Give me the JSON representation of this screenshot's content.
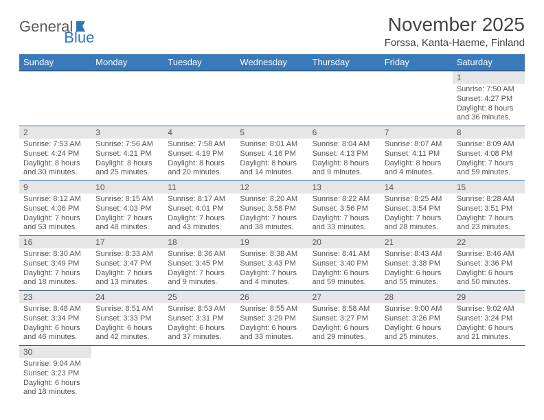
{
  "logo": {
    "part1": "General",
    "part2": "Blue"
  },
  "title": "November 2025",
  "location": "Forssa, Kanta-Haeme, Finland",
  "colors": {
    "header_bg": "#3a7ab8",
    "header_border": "#2e5e92",
    "day_num_bg": "#e6e6e6",
    "text": "#555555",
    "logo_gray": "#5a5a5a",
    "logo_blue": "#2e75b6"
  },
  "weekdays": [
    "Sunday",
    "Monday",
    "Tuesday",
    "Wednesday",
    "Thursday",
    "Friday",
    "Saturday"
  ],
  "weeks": [
    [
      null,
      null,
      null,
      null,
      null,
      null,
      {
        "n": "1",
        "sunrise": "Sunrise: 7:50 AM",
        "sunset": "Sunset: 4:27 PM",
        "daylight": "Daylight: 8 hours and 36 minutes."
      }
    ],
    [
      {
        "n": "2",
        "sunrise": "Sunrise: 7:53 AM",
        "sunset": "Sunset: 4:24 PM",
        "daylight": "Daylight: 8 hours and 30 minutes."
      },
      {
        "n": "3",
        "sunrise": "Sunrise: 7:56 AM",
        "sunset": "Sunset: 4:21 PM",
        "daylight": "Daylight: 8 hours and 25 minutes."
      },
      {
        "n": "4",
        "sunrise": "Sunrise: 7:58 AM",
        "sunset": "Sunset: 4:19 PM",
        "daylight": "Daylight: 8 hours and 20 minutes."
      },
      {
        "n": "5",
        "sunrise": "Sunrise: 8:01 AM",
        "sunset": "Sunset: 4:16 PM",
        "daylight": "Daylight: 8 hours and 14 minutes."
      },
      {
        "n": "6",
        "sunrise": "Sunrise: 8:04 AM",
        "sunset": "Sunset: 4:13 PM",
        "daylight": "Daylight: 8 hours and 9 minutes."
      },
      {
        "n": "7",
        "sunrise": "Sunrise: 8:07 AM",
        "sunset": "Sunset: 4:11 PM",
        "daylight": "Daylight: 8 hours and 4 minutes."
      },
      {
        "n": "8",
        "sunrise": "Sunrise: 8:09 AM",
        "sunset": "Sunset: 4:08 PM",
        "daylight": "Daylight: 7 hours and 59 minutes."
      }
    ],
    [
      {
        "n": "9",
        "sunrise": "Sunrise: 8:12 AM",
        "sunset": "Sunset: 4:06 PM",
        "daylight": "Daylight: 7 hours and 53 minutes."
      },
      {
        "n": "10",
        "sunrise": "Sunrise: 8:15 AM",
        "sunset": "Sunset: 4:03 PM",
        "daylight": "Daylight: 7 hours and 48 minutes."
      },
      {
        "n": "11",
        "sunrise": "Sunrise: 8:17 AM",
        "sunset": "Sunset: 4:01 PM",
        "daylight": "Daylight: 7 hours and 43 minutes."
      },
      {
        "n": "12",
        "sunrise": "Sunrise: 8:20 AM",
        "sunset": "Sunset: 3:58 PM",
        "daylight": "Daylight: 7 hours and 38 minutes."
      },
      {
        "n": "13",
        "sunrise": "Sunrise: 8:22 AM",
        "sunset": "Sunset: 3:56 PM",
        "daylight": "Daylight: 7 hours and 33 minutes."
      },
      {
        "n": "14",
        "sunrise": "Sunrise: 8:25 AM",
        "sunset": "Sunset: 3:54 PM",
        "daylight": "Daylight: 7 hours and 28 minutes."
      },
      {
        "n": "15",
        "sunrise": "Sunrise: 8:28 AM",
        "sunset": "Sunset: 3:51 PM",
        "daylight": "Daylight: 7 hours and 23 minutes."
      }
    ],
    [
      {
        "n": "16",
        "sunrise": "Sunrise: 8:30 AM",
        "sunset": "Sunset: 3:49 PM",
        "daylight": "Daylight: 7 hours and 18 minutes."
      },
      {
        "n": "17",
        "sunrise": "Sunrise: 8:33 AM",
        "sunset": "Sunset: 3:47 PM",
        "daylight": "Daylight: 7 hours and 13 minutes."
      },
      {
        "n": "18",
        "sunrise": "Sunrise: 8:36 AM",
        "sunset": "Sunset: 3:45 PM",
        "daylight": "Daylight: 7 hours and 9 minutes."
      },
      {
        "n": "19",
        "sunrise": "Sunrise: 8:38 AM",
        "sunset": "Sunset: 3:43 PM",
        "daylight": "Daylight: 7 hours and 4 minutes."
      },
      {
        "n": "20",
        "sunrise": "Sunrise: 8:41 AM",
        "sunset": "Sunset: 3:40 PM",
        "daylight": "Daylight: 6 hours and 59 minutes."
      },
      {
        "n": "21",
        "sunrise": "Sunrise: 8:43 AM",
        "sunset": "Sunset: 3:38 PM",
        "daylight": "Daylight: 6 hours and 55 minutes."
      },
      {
        "n": "22",
        "sunrise": "Sunrise: 8:46 AM",
        "sunset": "Sunset: 3:36 PM",
        "daylight": "Daylight: 6 hours and 50 minutes."
      }
    ],
    [
      {
        "n": "23",
        "sunrise": "Sunrise: 8:48 AM",
        "sunset": "Sunset: 3:34 PM",
        "daylight": "Daylight: 6 hours and 46 minutes."
      },
      {
        "n": "24",
        "sunrise": "Sunrise: 8:51 AM",
        "sunset": "Sunset: 3:33 PM",
        "daylight": "Daylight: 6 hours and 42 minutes."
      },
      {
        "n": "25",
        "sunrise": "Sunrise: 8:53 AM",
        "sunset": "Sunset: 3:31 PM",
        "daylight": "Daylight: 6 hours and 37 minutes."
      },
      {
        "n": "26",
        "sunrise": "Sunrise: 8:55 AM",
        "sunset": "Sunset: 3:29 PM",
        "daylight": "Daylight: 6 hours and 33 minutes."
      },
      {
        "n": "27",
        "sunrise": "Sunrise: 8:58 AM",
        "sunset": "Sunset: 3:27 PM",
        "daylight": "Daylight: 6 hours and 29 minutes."
      },
      {
        "n": "28",
        "sunrise": "Sunrise: 9:00 AM",
        "sunset": "Sunset: 3:26 PM",
        "daylight": "Daylight: 6 hours and 25 minutes."
      },
      {
        "n": "29",
        "sunrise": "Sunrise: 9:02 AM",
        "sunset": "Sunset: 3:24 PM",
        "daylight": "Daylight: 6 hours and 21 minutes."
      }
    ],
    [
      {
        "n": "30",
        "sunrise": "Sunrise: 9:04 AM",
        "sunset": "Sunset: 3:23 PM",
        "daylight": "Daylight: 6 hours and 18 minutes."
      },
      null,
      null,
      null,
      null,
      null,
      null
    ]
  ]
}
